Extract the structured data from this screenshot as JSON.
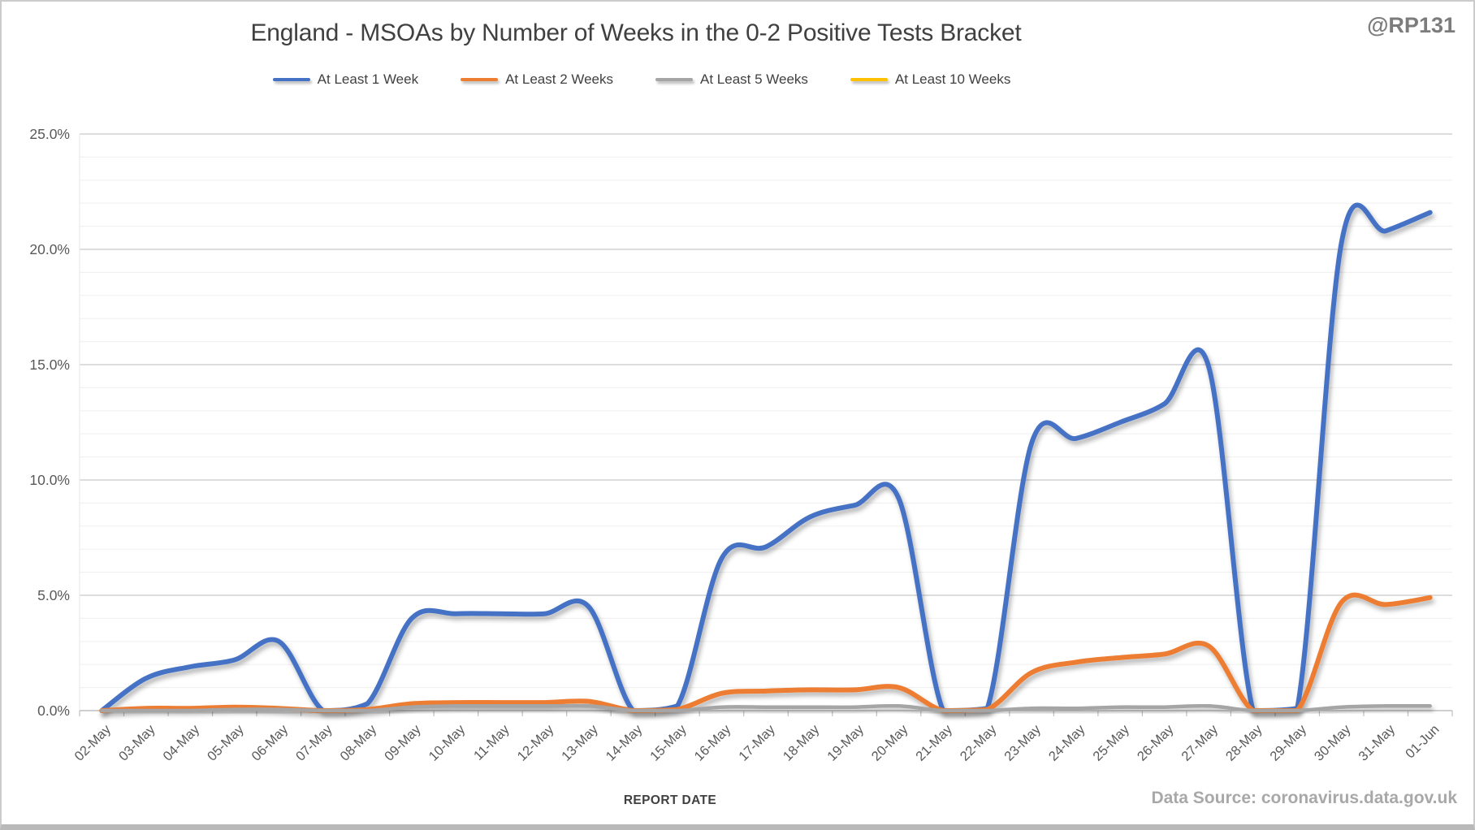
{
  "watermark": "@RP131",
  "source_note": "Data Source: coronavirus.data.gov.uk",
  "chart_data": {
    "type": "line",
    "title": "England - MSOAs by Number of Weeks in the 0-2 Positive Tests Bracket",
    "xlabel": "REPORT DATE",
    "ylabel": "",
    "legend_position": "top",
    "grid": true,
    "y_axis": {
      "min": 0,
      "max": 25,
      "major_step": 5,
      "minor_step": 1,
      "tick_labels": [
        "0.0%",
        "5.0%",
        "10.0%",
        "15.0%",
        "20.0%",
        "25.0%"
      ]
    },
    "categories": [
      "02-May",
      "03-May",
      "04-May",
      "05-May",
      "06-May",
      "07-May",
      "08-May",
      "09-May",
      "10-May",
      "11-May",
      "12-May",
      "13-May",
      "14-May",
      "15-May",
      "16-May",
      "17-May",
      "18-May",
      "19-May",
      "20-May",
      "21-May",
      "22-May",
      "23-May",
      "24-May",
      "25-May",
      "26-May",
      "27-May",
      "28-May",
      "29-May",
      "30-May",
      "31-May",
      "01-Jun"
    ],
    "series": [
      {
        "name": "At Least 1 Week",
        "color": "#4472C4",
        "values": [
          0,
          1.4,
          1.9,
          2.2,
          3.0,
          0,
          0.3,
          4.0,
          4.2,
          4.2,
          4.2,
          4.5,
          0,
          0.2,
          6.6,
          7.1,
          8.4,
          8.9,
          9.2,
          0,
          0.1,
          11.6,
          11.8,
          12.5,
          13.3,
          14.9,
          0,
          0.1,
          20.3,
          20.8,
          21.6
        ]
      },
      {
        "name": "At Least 2 Weeks",
        "color": "#ED7D31",
        "values": [
          0,
          0.1,
          0.1,
          0.15,
          0.1,
          0,
          0.05,
          0.3,
          0.35,
          0.35,
          0.35,
          0.4,
          0,
          0.05,
          0.75,
          0.85,
          0.9,
          0.9,
          1.0,
          0,
          0.05,
          1.65,
          2.1,
          2.3,
          2.45,
          2.8,
          0,
          0,
          4.7,
          4.6,
          4.9
        ]
      },
      {
        "name": "At Least 5 Weeks",
        "color": "#A5A5A5",
        "values": [
          0,
          0,
          0,
          0.05,
          0.05,
          0,
          0,
          0.15,
          0.2,
          0.2,
          0.2,
          0.2,
          0,
          0,
          0.15,
          0.15,
          0.15,
          0.15,
          0.2,
          0,
          0,
          0.1,
          0.1,
          0.15,
          0.15,
          0.2,
          0,
          0,
          0.15,
          0.2,
          0.2
        ]
      },
      {
        "name": "At Least 10 Weeks",
        "color": "#FFC000",
        "values": [
          0,
          0,
          0,
          0,
          0,
          0,
          0,
          0,
          0,
          0,
          0,
          0,
          0,
          0,
          0,
          0,
          0,
          0,
          0,
          0,
          0,
          0,
          0,
          0,
          0,
          0,
          0,
          0,
          0,
          0,
          0
        ]
      }
    ]
  }
}
